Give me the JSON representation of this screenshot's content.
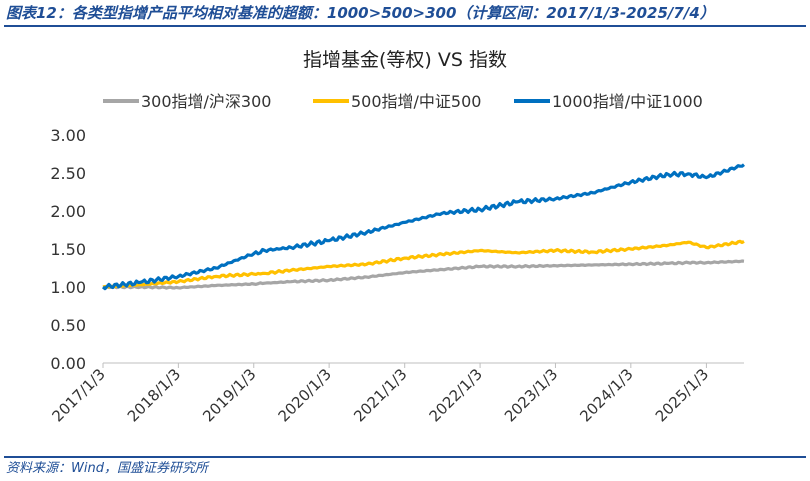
{
  "figure": {
    "title": "图表12：各类型指增产品平均相对基准的超额：1000>500>300（计算区间：2017/1/3-2025/7/4）",
    "source": "资料来源：Wind，国盛证券研究所"
  },
  "colors": {
    "accent": "#1f4e96"
  },
  "chart_data": {
    "type": "line",
    "title": "指增基金(等权) VS 指数",
    "xlabel": "",
    "ylabel": "",
    "ylim": [
      0,
      3
    ],
    "yticks": [
      "0.00",
      "0.50",
      "1.00",
      "1.50",
      "2.00",
      "2.50",
      "3.00"
    ],
    "categories": [
      "2017/1/3",
      "2018/1/3",
      "2019/1/3",
      "2020/1/3",
      "2021/1/3",
      "2022/1/3",
      "2023/1/3",
      "2024/1/3",
      "2025/1/3"
    ],
    "x_end": "2025/7/4",
    "grid": false,
    "legend_position": "top",
    "x": [
      "2017/1/3",
      "2017/7/3",
      "2018/1/3",
      "2018/7/3",
      "2019/1/3",
      "2019/2/25",
      "2019/7/3",
      "2020/1/3",
      "2020/7/3",
      "2021/1/3",
      "2021/7/3",
      "2022/1/3",
      "2022/7/3",
      "2023/1/3",
      "2023/7/3",
      "2024/1/3",
      "2024/7/3",
      "2024/10/8",
      "2025/1/3",
      "2025/7/4"
    ],
    "series": [
      {
        "name": "300指增/沪深300",
        "color": "#a6a6a6",
        "values": [
          1.0,
          1.0,
          0.99,
          1.02,
          1.04,
          1.05,
          1.07,
          1.09,
          1.13,
          1.19,
          1.23,
          1.27,
          1.27,
          1.28,
          1.29,
          1.3,
          1.31,
          1.32,
          1.32,
          1.34
        ]
      },
      {
        "name": "500指增/中证500",
        "color": "#ffc000",
        "values": [
          1.0,
          1.03,
          1.07,
          1.14,
          1.17,
          1.18,
          1.22,
          1.27,
          1.3,
          1.38,
          1.43,
          1.48,
          1.45,
          1.48,
          1.46,
          1.5,
          1.55,
          1.59,
          1.52,
          1.6
        ]
      },
      {
        "name": "1000指增/中证1000",
        "color": "#0070c0",
        "values": [
          1.0,
          1.06,
          1.14,
          1.25,
          1.44,
          1.48,
          1.52,
          1.61,
          1.72,
          1.85,
          1.97,
          2.02,
          2.12,
          2.16,
          2.24,
          2.38,
          2.48,
          2.49,
          2.44,
          2.61
        ]
      }
    ]
  }
}
